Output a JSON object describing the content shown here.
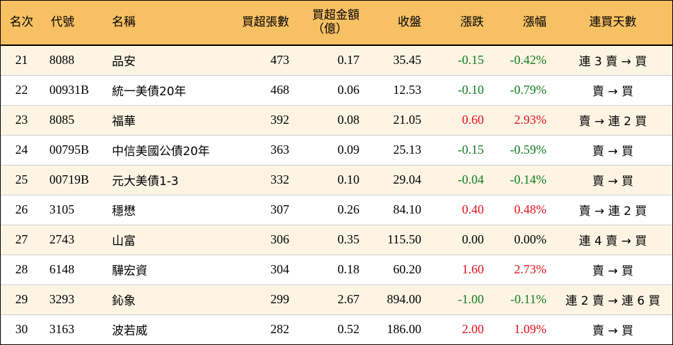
{
  "headers": {
    "rank": "名次",
    "code": "代號",
    "name": "名稱",
    "net_buy": "買超張數",
    "amount_line1": "買超金額",
    "amount_line2": "（億）",
    "close": "收盤",
    "change": "漲跌",
    "pct": "漲幅",
    "days": "連買天數"
  },
  "colors": {
    "header_bg": "#f7c063",
    "odd_row_bg": "#fdf4e4",
    "up": "#e3101d",
    "down": "#117d20"
  },
  "rows": [
    {
      "rank": "21",
      "code": "8088",
      "name": "品安",
      "net_buy": "473",
      "amount": "0.17",
      "close": "35.45",
      "change": "-0.15",
      "pct": "-0.42%",
      "days": "連 3 賣 → 買",
      "trend": "down"
    },
    {
      "rank": "22",
      "code": "00931B",
      "name": "統一美債20年",
      "net_buy": "468",
      "amount": "0.06",
      "close": "12.53",
      "change": "-0.10",
      "pct": "-0.79%",
      "days": "賣 → 買",
      "trend": "down"
    },
    {
      "rank": "23",
      "code": "8085",
      "name": "福華",
      "net_buy": "392",
      "amount": "0.08",
      "close": "21.05",
      "change": "0.60",
      "pct": "2.93%",
      "days": "賣 → 連 2 買",
      "trend": "up"
    },
    {
      "rank": "24",
      "code": "00795B",
      "name": "中信美國公債20年",
      "net_buy": "363",
      "amount": "0.09",
      "close": "25.13",
      "change": "-0.15",
      "pct": "-0.59%",
      "days": "賣 → 買",
      "trend": "down"
    },
    {
      "rank": "25",
      "code": "00719B",
      "name": "元大美債1-3",
      "net_buy": "332",
      "amount": "0.10",
      "close": "29.04",
      "change": "-0.04",
      "pct": "-0.14%",
      "days": "賣 → 買",
      "trend": "down"
    },
    {
      "rank": "26",
      "code": "3105",
      "name": "穩懋",
      "net_buy": "307",
      "amount": "0.26",
      "close": "84.10",
      "change": "0.40",
      "pct": "0.48%",
      "days": "賣 → 連 2 買",
      "trend": "up"
    },
    {
      "rank": "27",
      "code": "2743",
      "name": "山富",
      "net_buy": "306",
      "amount": "0.35",
      "close": "115.50",
      "change": "0.00",
      "pct": "0.00%",
      "days": "連 4 賣 → 買",
      "trend": "flat"
    },
    {
      "rank": "28",
      "code": "6148",
      "name": "驊宏資",
      "net_buy": "304",
      "amount": "0.18",
      "close": "60.20",
      "change": "1.60",
      "pct": "2.73%",
      "days": "賣 → 買",
      "trend": "up"
    },
    {
      "rank": "29",
      "code": "3293",
      "name": "鈊象",
      "net_buy": "299",
      "amount": "2.67",
      "close": "894.00",
      "change": "-1.00",
      "pct": "-0.11%",
      "days": "連 2 賣 → 連 6 買",
      "trend": "down"
    },
    {
      "rank": "30",
      "code": "3163",
      "name": "波若威",
      "net_buy": "282",
      "amount": "0.52",
      "close": "186.00",
      "change": "2.00",
      "pct": "1.09%",
      "days": "賣 → 買",
      "trend": "up"
    }
  ]
}
